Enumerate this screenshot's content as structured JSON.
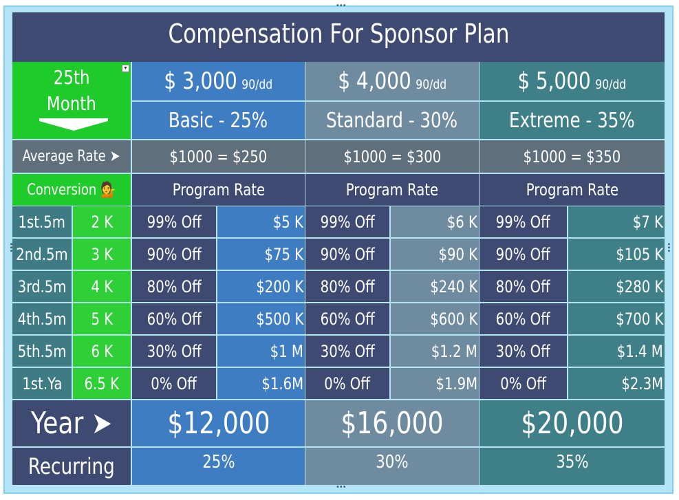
{
  "title": "Compensation For Sponsor Plan",
  "month_cell": {
    "line1": "25th",
    "line2": "Month"
  },
  "dropdown_icon": "chevron-down-icon",
  "plans": [
    {
      "price": "$ 3,000",
      "term": "90/dd",
      "name": "Basic - 25%",
      "rate": "$1000 = $250",
      "program": "Program Rate",
      "year": "$12,000",
      "recurring": "25%"
    },
    {
      "price": "$ 4,000",
      "term": "90/dd",
      "name": "Standard - 30%",
      "rate": "$1000 = $300",
      "program": "Program Rate",
      "year": "$16,000",
      "recurring": "30%"
    },
    {
      "price": "$ 5,000",
      "term": "90/dd",
      "name": "Extreme - 35%",
      "rate": "$1000 = $350",
      "program": "Program Rate",
      "year": "$20,000",
      "recurring": "35%"
    }
  ],
  "average_rate_label": "Average Rate ➤",
  "conversion_label": "Conversion 💁",
  "rows": [
    {
      "period": "1st.5m",
      "conv": "2 K",
      "cells": [
        [
          "99% Off",
          "$5  K"
        ],
        [
          "99% Off",
          "$6  K"
        ],
        [
          "99% Off",
          "$7  K"
        ]
      ]
    },
    {
      "period": "2nd.5m",
      "conv": "3 K",
      "cells": [
        [
          "90% Off",
          "$75 K"
        ],
        [
          "90% Off",
          "$90 K"
        ],
        [
          "90% Off",
          "$105 K"
        ]
      ]
    },
    {
      "period": "3rd.5m",
      "conv": "4 K",
      "cells": [
        [
          "80% Off",
          "$200 K"
        ],
        [
          "80% Off",
          "$240 K"
        ],
        [
          "80% Off",
          "$280 K"
        ]
      ]
    },
    {
      "period": "4th.5m",
      "conv": "5 K",
      "cells": [
        [
          "60% Off",
          "$500 K"
        ],
        [
          "60% Off",
          "$600 K"
        ],
        [
          "60% Off",
          "$700 K"
        ]
      ]
    },
    {
      "period": "5th.5m",
      "conv": "6 K",
      "cells": [
        [
          "30% Off",
          "$1 M"
        ],
        [
          "30% Off",
          "$1.2 M"
        ],
        [
          "30% Off",
          "$1.4 M"
        ]
      ]
    },
    {
      "period": "1st.Ya",
      "conv": "6.5 K",
      "cells": [
        [
          "0% Off",
          "$1.6M"
        ],
        [
          "0% Off",
          "$1.9M"
        ],
        [
          "0% Off",
          "$2.3M"
        ]
      ]
    }
  ],
  "year_label": "Year ➤",
  "recurring_label": "Recurring",
  "colors": {
    "header": "#3f4a73",
    "green": "#1fca2b",
    "basic": "#3f7dc2",
    "standard": "#6f8ba0",
    "extreme": "#3f7f88"
  }
}
